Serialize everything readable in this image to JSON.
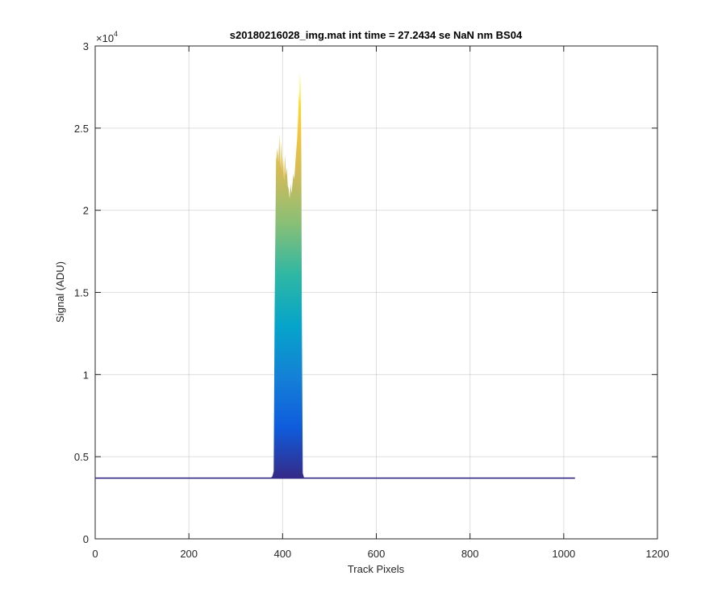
{
  "chart_data": {
    "type": "area",
    "title": "s20180216028_img.mat int time = 27.2434 se  NaN nm BS04",
    "xlabel": "Track Pixels",
    "ylabel": "Signal (ADU)",
    "exponent_base": "×10",
    "exponent_power": "4",
    "xlim": [
      0,
      1200
    ],
    "ylim": [
      0,
      30000
    ],
    "grid": true,
    "x_ticks": [
      0,
      200,
      400,
      600,
      800,
      1000,
      1200
    ],
    "x_tick_labels": [
      "0",
      "200",
      "400",
      "600",
      "800",
      "1000",
      "1200"
    ],
    "y_ticks": [
      0,
      5000,
      10000,
      15000,
      20000,
      25000,
      30000
    ],
    "y_tick_labels": [
      "0",
      "0.5",
      "1",
      "1.5",
      "2",
      "2.5",
      "3"
    ],
    "colormap": [
      "#352a87",
      "#0f5cdd",
      "#1481d6",
      "#06a4ca",
      "#2eb7a4",
      "#87bf77",
      "#d1bb59",
      "#fec832",
      "#f9fb0e"
    ],
    "baseline": {
      "x_start": 1,
      "x_end": 1024,
      "value": 3700
    },
    "series": [
      {
        "x": [
          374,
          378,
          381,
          383,
          386,
          389,
          391,
          393,
          395,
          397,
          399,
          401,
          403,
          405,
          407,
          409,
          411,
          413,
          415,
          417,
          419,
          421,
          423,
          425,
          427,
          429,
          431,
          433,
          435,
          436,
          437,
          438,
          439,
          440,
          441,
          443,
          446
        ],
        "values": [
          3700,
          3800,
          4100,
          14000,
          23000,
          23800,
          22900,
          24600,
          22600,
          24200,
          22400,
          23300,
          21800,
          23400,
          22100,
          22600,
          21500,
          21300,
          20700,
          21600,
          21000,
          21600,
          22200,
          21900,
          22800,
          23600,
          24300,
          25500,
          27200,
          26600,
          28400,
          27600,
          26200,
          23000,
          14000,
          4000,
          3700
        ]
      }
    ]
  }
}
